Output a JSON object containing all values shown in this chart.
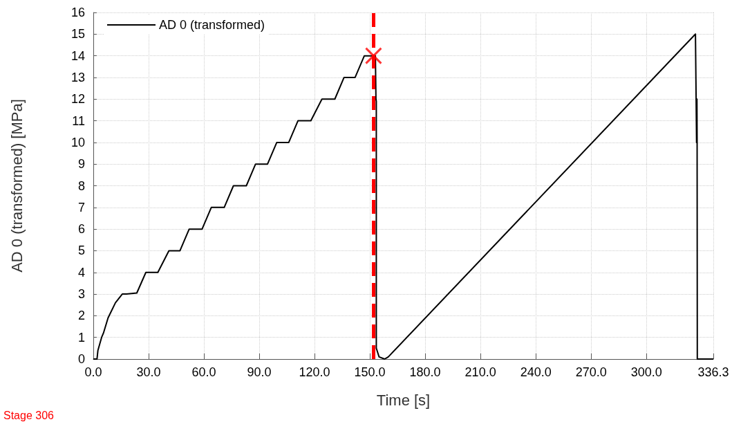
{
  "chart_data": {
    "type": "line",
    "xlabel": "Time [s]",
    "ylabel": "AD 0 (transformed) [MPa]",
    "xlim": [
      0,
      336.3
    ],
    "xticks": [
      {
        "value": 0,
        "label": "0.0"
      },
      {
        "value": 30,
        "label": "30.0"
      },
      {
        "value": 60,
        "label": "60.0"
      },
      {
        "value": 90,
        "label": "90.0"
      },
      {
        "value": 120,
        "label": "120.0"
      },
      {
        "value": 150,
        "label": "150.0"
      },
      {
        "value": 180,
        "label": "180.0"
      },
      {
        "value": 210,
        "label": "210.0"
      },
      {
        "value": 240,
        "label": "240.0"
      },
      {
        "value": 270,
        "label": "270.0"
      },
      {
        "value": 300,
        "label": "300.0"
      },
      336.3
    ],
    "ylim": [
      0,
      16
    ],
    "yticks": [
      0,
      1,
      2,
      3,
      4,
      5,
      6,
      7,
      8,
      9,
      10,
      11,
      12,
      13,
      14,
      15,
      16
    ],
    "grid": true,
    "legend": "top left",
    "line_style": "solid",
    "marker": "none",
    "series": [
      {
        "name": "AD 0 (transformed)",
        "color": "#000000",
        "x": [
          0,
          2,
          2.5,
          4.5,
          5.5,
          8,
          12,
          15.7,
          18,
          23.6,
          28.5,
          35,
          41,
          47,
          52,
          59,
          64,
          71,
          76,
          83,
          88,
          94.5,
          99.5,
          106,
          111,
          118,
          124,
          131,
          136,
          142,
          147,
          151,
          153,
          153.3,
          153.5,
          153.5,
          155,
          158,
          160,
          326.6,
          327.2,
          327.4,
          327.5,
          327.6,
          327.7,
          328,
          336.3
        ],
        "values": [
          0,
          0,
          0.4,
          1,
          1.2,
          1.9,
          2.6,
          3,
          3,
          3.05,
          4,
          4,
          5,
          5,
          6,
          6,
          7,
          7,
          8,
          8,
          9,
          9,
          10,
          10,
          11,
          11,
          12,
          12,
          13,
          13,
          14,
          14,
          14,
          12,
          11.9,
          0.5,
          0.1,
          0,
          0.1,
          15,
          10,
          12,
          10,
          0,
          0,
          0,
          0
        ]
      },
      {
        "type": "scatter",
        "color": "#ff0000",
        "marker": "cross",
        "x": [
          152
        ],
        "values": [
          14
        ]
      }
    ],
    "ref_lines": [
      {
        "axis": "x",
        "value": 152,
        "color": "#ff0000",
        "line_style": "dashed"
      }
    ],
    "annotations": [
      "Stage 306"
    ]
  }
}
